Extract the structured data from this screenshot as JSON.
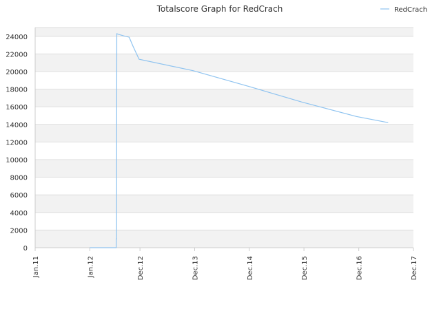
{
  "chart_data": {
    "type": "line",
    "title": "Totalscore Graph for RedCrach",
    "xlabel": "",
    "ylabel": "",
    "legend": {
      "placement": "top-right",
      "entries": [
        "RedCrach"
      ]
    },
    "grid": true,
    "colors": {
      "series": "#8ec3f0",
      "band": "#f2f2f2",
      "grid": "#dddddd",
      "axis": "#cccccc",
      "text": "#333333"
    },
    "ylim": [
      0,
      25000
    ],
    "y_ticks": [
      0,
      2000,
      4000,
      6000,
      8000,
      10000,
      12000,
      14000,
      16000,
      18000,
      20000,
      22000,
      24000
    ],
    "x_ticks": [
      {
        "label": "Jan.11",
        "date": "2011-01-01"
      },
      {
        "label": "Jan.12",
        "date": "2012-01-01"
      },
      {
        "label": "Dec.12",
        "date": "2012-12-01"
      },
      {
        "label": "Dec.13",
        "date": "2013-12-01"
      },
      {
        "label": "Dec.14",
        "date": "2014-12-01"
      },
      {
        "label": "Dec.15",
        "date": "2015-12-01"
      },
      {
        "label": "Dec.16",
        "date": "2016-12-01"
      },
      {
        "label": "Dec.17",
        "date": "2017-12-01"
      }
    ],
    "xlim": [
      "2011-01-01",
      "2017-12-01"
    ],
    "series": [
      {
        "name": "RedCrach",
        "points": [
          {
            "x": "2012-01-01",
            "y": 0
          },
          {
            "x": "2012-06-25",
            "y": 0
          },
          {
            "x": "2012-06-26",
            "y": 1000
          },
          {
            "x": "2012-06-28",
            "y": 1000
          },
          {
            "x": "2012-06-29",
            "y": 24300
          },
          {
            "x": "2012-07-15",
            "y": 24200
          },
          {
            "x": "2012-08-15",
            "y": 24050
          },
          {
            "x": "2012-09-20",
            "y": 23900
          },
          {
            "x": "2012-10-15",
            "y": 22900
          },
          {
            "x": "2012-11-25",
            "y": 21400
          },
          {
            "x": "2013-11-20",
            "y": 20100
          },
          {
            "x": "2014-12-01",
            "y": 18300
          },
          {
            "x": "2015-11-15",
            "y": 16550
          },
          {
            "x": "2016-11-15",
            "y": 14900
          },
          {
            "x": "2017-06-15",
            "y": 14200
          }
        ]
      }
    ]
  }
}
